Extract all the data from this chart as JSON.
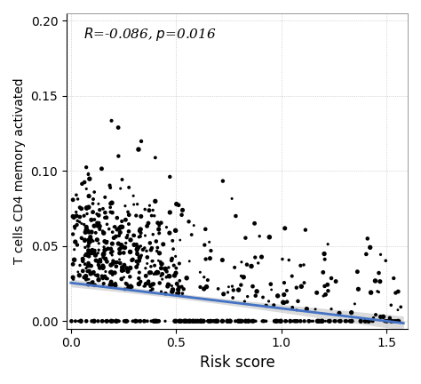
{
  "title": "",
  "xlabel": "Risk score",
  "ylabel": "T cells CD4 memory activated",
  "annotation_R": "-0.086",
  "annotation_p": "0.016",
  "xlim": [
    -0.02,
    1.6
  ],
  "ylim": [
    -0.005,
    0.205
  ],
  "xticks": [
    0.0,
    0.5,
    1.0,
    1.5
  ],
  "yticks": [
    0.0,
    0.05,
    0.1,
    0.15,
    0.2
  ],
  "line_color": "#4472C4",
  "ci_color": "#b0b0b0",
  "dot_color": "#000000",
  "dot_size": 10,
  "background_color": "#ffffff",
  "grid_color": "#888888",
  "regression_intercept": 0.0255,
  "regression_slope": -0.017,
  "seed": 99,
  "n_points": 530
}
